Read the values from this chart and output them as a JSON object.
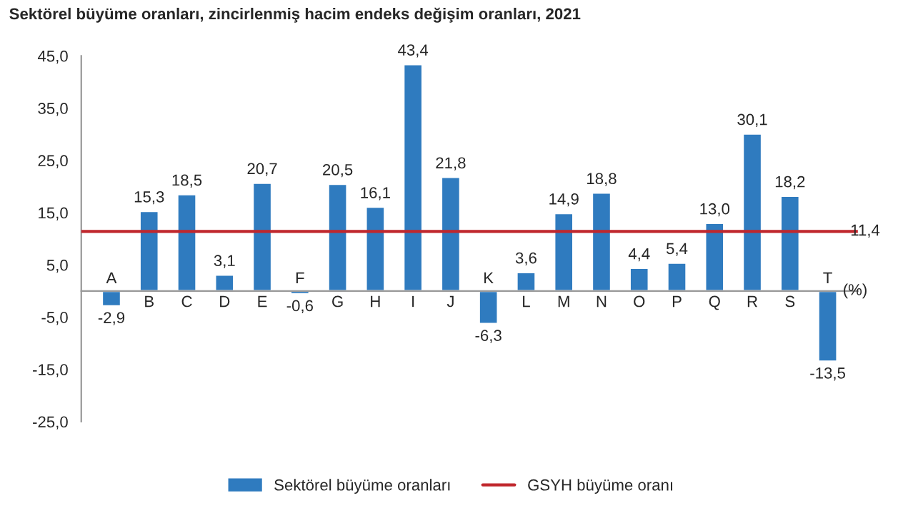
{
  "chart_data": {
    "type": "bar",
    "title": "Sektörel büyüme oranları, zincirlenmiş hacim endeks değişim oranları, 2021",
    "categories": [
      "A",
      "B",
      "C",
      "D",
      "E",
      "F",
      "G",
      "H",
      "I",
      "J",
      "K",
      "L",
      "M",
      "N",
      "O",
      "P",
      "Q",
      "R",
      "S",
      "T"
    ],
    "series": [
      {
        "name": "Sektörel büyüme oranları",
        "color": "#2f7bbf",
        "values": [
          -2.9,
          15.3,
          18.5,
          3.1,
          20.7,
          -0.6,
          20.5,
          16.1,
          43.4,
          21.8,
          -6.3,
          3.6,
          14.9,
          18.8,
          4.4,
          5.4,
          13.0,
          30.1,
          18.2,
          -13.5
        ],
        "value_labels": [
          "-2,9",
          "15,3",
          "18,5",
          "3,1",
          "20,7",
          "-0,6",
          "20,5",
          "16,1",
          "43,4",
          "21,8",
          "-6,3",
          "3,6",
          "14,9",
          "18,8",
          "4,4",
          "5,4",
          "13,0",
          "30,1",
          "18,2",
          "-13,5"
        ]
      }
    ],
    "ylim": [
      -25,
      45
    ],
    "yticks": [
      {
        "value": -25,
        "label": "-25,0"
      },
      {
        "value": -15,
        "label": "-15,0"
      },
      {
        "value": -5,
        "label": "-5,0"
      },
      {
        "value": 5,
        "label": "5,0"
      },
      {
        "value": 15,
        "label": "15,0"
      },
      {
        "value": 25,
        "label": "25,0"
      },
      {
        "value": 35,
        "label": "35,0"
      },
      {
        "value": 45,
        "label": "45,0"
      }
    ],
    "ref_lines": [
      {
        "axis": "y",
        "value": 11.4,
        "label": "GSYH büyüme oranı",
        "color": "#c0272d",
        "line_style": "solid"
      }
    ],
    "annotations": [
      {
        "text": "11,4",
        "x": "T",
        "y": 11.4
      },
      "(%)"
    ],
    "legend": "bottom",
    "grid": false
  }
}
